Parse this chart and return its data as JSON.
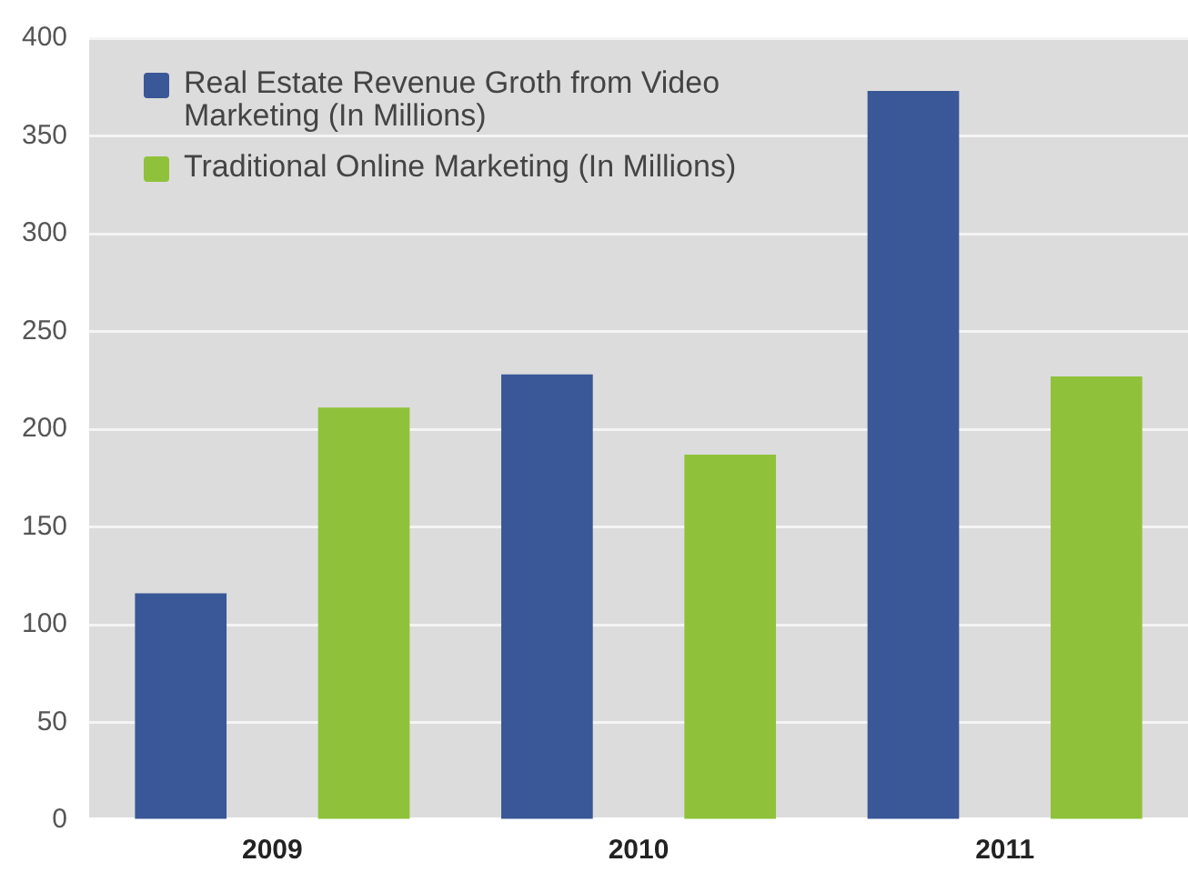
{
  "chart_data": {
    "type": "bar",
    "categories": [
      "2009",
      "2010",
      "2011"
    ],
    "series": [
      {
        "name": "Real Estate Revenue Groth from Video Marketing (In Millions)",
        "color": "#3a5897",
        "values": [
          116,
          228,
          373
        ]
      },
      {
        "name": "Traditional Online Marketing (In Millions)",
        "color": "#8fc23a",
        "values": [
          211,
          187,
          227
        ]
      }
    ],
    "ylim": [
      0,
      400
    ],
    "yticks": [
      0,
      50,
      100,
      150,
      200,
      250,
      300,
      350,
      400
    ],
    "grid": "y",
    "legend": "top left"
  }
}
